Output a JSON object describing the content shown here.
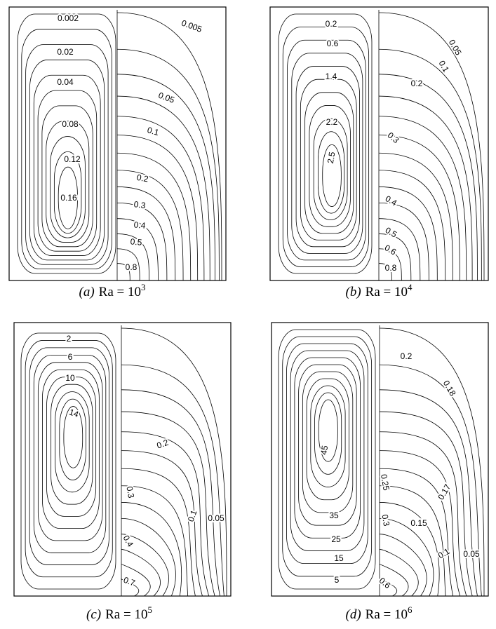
{
  "panels": [
    {
      "caption": {
        "tag": "(a)",
        "expr": "Ra = 10",
        "exponent": "3"
      },
      "labels": [
        "0.002",
        "0.02",
        "0.04",
        "0.08",
        "0.12",
        "0.16",
        "0.005",
        "0.05",
        "0.1",
        "0.2",
        "0.3",
        "0.4",
        "0.5",
        "0.8"
      ]
    },
    {
      "caption": {
        "tag": "(b)",
        "expr": "Ra = 10",
        "exponent": "4"
      },
      "labels": [
        "0.2",
        "0.6",
        "1.4",
        "2.2",
        "2.5",
        "0.05",
        "0.1",
        "0.2",
        "0.3",
        "0.4",
        "0.5",
        "0.6",
        "0.8"
      ]
    },
    {
      "caption": {
        "tag": "(c)",
        "expr": "Ra = 10",
        "exponent": "5"
      },
      "labels": [
        "2",
        "6",
        "10",
        "14",
        "0.2",
        "0.3",
        "0.4",
        "0.7",
        "0.1",
        "0.05"
      ]
    },
    {
      "caption": {
        "tag": "(d)",
        "expr": "Ra = 10",
        "exponent": "6"
      },
      "labels": [
        "45",
        "35",
        "25",
        "15",
        "5",
        "0.2",
        "0.18",
        "0.25",
        "0.3",
        "0.6",
        "0.17",
        "0.15",
        "0.1",
        "0.05"
      ]
    }
  ]
}
